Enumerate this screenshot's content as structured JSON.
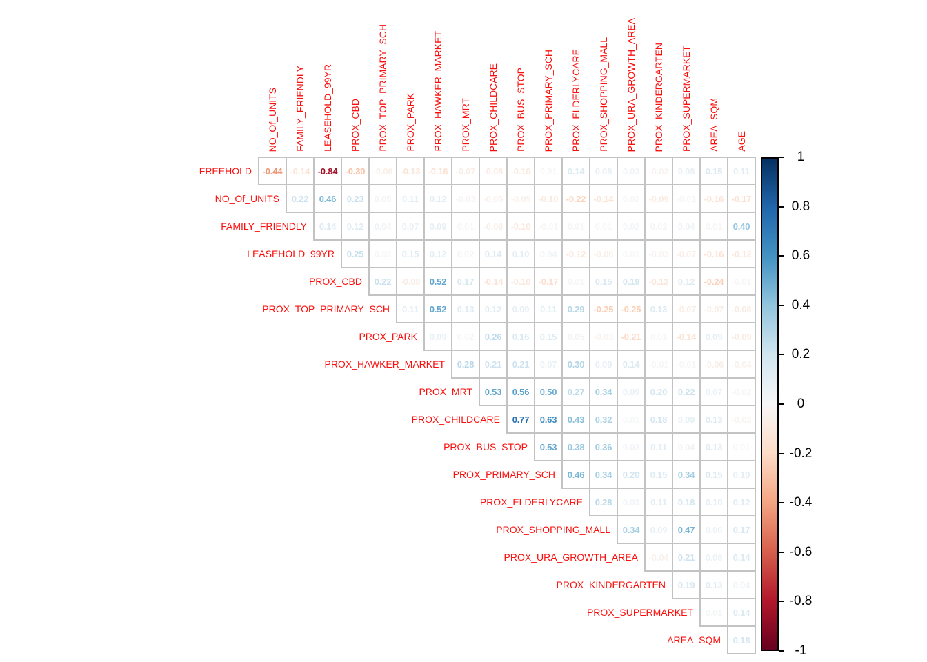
{
  "chart_data": {
    "type": "heatmap",
    "subtype": "correlation-matrix-upper-triangle",
    "value_format": "two-decimals",
    "value_range": [
      -1,
      1
    ],
    "grid": "on",
    "label_color": "#fb0f0c",
    "grid_color": "#c3c3c3",
    "tick_label_color": "#000000",
    "col_labels": [
      "NO_Of_UNITS",
      "FAMILY_FRIENDLY",
      "LEASEHOLD_99YR",
      "PROX_CBD",
      "PROX_TOP_PRIMARY_SCH",
      "PROX_PARK",
      "PROX_HAWKER_MARKET",
      "PROX_MRT",
      "PROX_CHILDCARE",
      "PROX_BUS_STOP",
      "PROX_PRIMARY_SCH",
      "PROX_ELDERLYCARE",
      "PROX_SHOPPING_MALL",
      "PROX_URA_GROWTH_AREA",
      "PROX_KINDERGARTEN",
      "PROX_SUPERMARKET",
      "AREA_SQM",
      "AGE"
    ],
    "rows": [
      {
        "label": "FREEHOLD",
        "values": [
          "-0.44",
          "-0.14",
          "-0.84",
          "-0.30",
          "-0.06",
          "-0.13",
          "-0.16",
          "-0.07",
          "-0.08",
          "-0.10",
          "0.01",
          "0.14",
          "0.08",
          "0.03",
          "-0.03",
          "0.08",
          "0.15",
          "0.11"
        ]
      },
      {
        "label": "NO_Of_UNITS",
        "values": [
          "0.22",
          "0.46",
          "0.23",
          "0.05",
          "0.11",
          "0.12",
          "-0.03",
          "-0.05",
          "-0.05",
          "-0.10",
          "-0.22",
          "-0.14",
          "0.02",
          "-0.09",
          "-0.01",
          "-0.16",
          "-0.17"
        ]
      },
      {
        "label": "FAMILY_FRIENDLY",
        "values": [
          "0.14",
          "0.12",
          "0.04",
          "0.07",
          "0.09",
          "0.01",
          "-0.06",
          "-0.10",
          "-0.01",
          "0.01",
          "0.01",
          "0.02",
          "0.02",
          "0.04",
          "0.01",
          "0.40"
        ]
      },
      {
        "label": "LEASEHOLD_99YR",
        "values": [
          "0.25",
          "0.02",
          "0.15",
          "0.12",
          "0.02",
          "0.14",
          "0.10",
          "0.04",
          "-0.12",
          "-0.06",
          "0.01",
          "-0.03",
          "-0.07",
          "-0.16",
          "-0.12"
        ]
      },
      {
        "label": "PROX_CBD",
        "values": [
          "0.22",
          "-0.08",
          "0.52",
          "0.17",
          "-0.14",
          "-0.10",
          "-0.17",
          "0.01",
          "0.15",
          "0.19",
          "-0.12",
          "0.12",
          "-0.24",
          "-0.01"
        ]
      },
      {
        "label": "PROX_TOP_PRIMARY_SCH",
        "values": [
          "0.11",
          "0.52",
          "0.13",
          "0.12",
          "0.09",
          "0.11",
          "0.29",
          "-0.25",
          "-0.25",
          "0.13",
          "-0.07",
          "-0.07",
          "-0.08"
        ]
      },
      {
        "label": "PROX_PARK",
        "values": [
          "0.09",
          "0.02",
          "0.26",
          "0.16",
          "0.15",
          "0.05",
          "-0.03",
          "-0.21",
          "0.01",
          "-0.14",
          "0.09",
          "-0.09"
        ]
      },
      {
        "label": "PROX_HAWKER_MARKET",
        "values": [
          "0.28",
          "0.21",
          "0.21",
          "0.07",
          "0.30",
          "0.09",
          "0.14",
          "-0.01",
          "-0.01",
          "-0.06",
          "-0.04"
        ]
      },
      {
        "label": "PROX_MRT",
        "values": [
          "0.53",
          "0.56",
          "0.50",
          "0.27",
          "0.34",
          "0.09",
          "0.20",
          "0.22",
          "0.07",
          "-0.02"
        ]
      },
      {
        "label": "PROX_CHILDCARE",
        "values": [
          "0.77",
          "0.63",
          "0.43",
          "0.32",
          "0.01",
          "0.18",
          "0.09",
          "0.13",
          "-0.02"
        ]
      },
      {
        "label": "PROX_BUS_STOP",
        "values": [
          "0.53",
          "0.38",
          "0.36",
          "0.03",
          "0.11",
          "0.04",
          "0.13",
          "0.01"
        ]
      },
      {
        "label": "PROX_PRIMARY_SCH",
        "values": [
          "0.46",
          "0.34",
          "0.20",
          "0.15",
          "0.34",
          "0.15",
          "0.10"
        ]
      },
      {
        "label": "PROX_ELDERLYCARE",
        "values": [
          "0.28",
          "0.03",
          "0.11",
          "0.18",
          "0.10",
          "0.12"
        ]
      },
      {
        "label": "PROX_SHOPPING_MALL",
        "values": [
          "0.34",
          "0.09",
          "0.47",
          "0.06",
          "0.17"
        ]
      },
      {
        "label": "PROX_URA_GROWTH_AREA",
        "values": [
          "-0.04",
          "0.21",
          "0.06",
          "0.14"
        ]
      },
      {
        "label": "PROX_KINDERGARTEN",
        "values": [
          "0.19",
          "0.13",
          "0.04"
        ]
      },
      {
        "label": "PROX_SUPERMARKET",
        "values": [
          "0.01",
          "0.14"
        ]
      },
      {
        "label": "AREA_SQM",
        "values": [
          "0.18"
        ]
      }
    ],
    "legend": {
      "position": "right",
      "min": -1,
      "max": 1,
      "ticks": [
        "1",
        "0.8",
        "0.6",
        "0.4",
        "0.2",
        "0",
        "-0.2",
        "-0.4",
        "-0.6",
        "-0.8",
        "-1"
      ]
    },
    "palette": {
      "name": "RdBu-reversed",
      "stops": [
        {
          "value": -1.0,
          "color": "#67001F"
        },
        {
          "value": -0.8,
          "color": "#B2182B"
        },
        {
          "value": -0.6,
          "color": "#D6604D"
        },
        {
          "value": -0.4,
          "color": "#F4A582"
        },
        {
          "value": -0.2,
          "color": "#FDDBC7"
        },
        {
          "value": 0.0,
          "color": "#F7F7F7"
        },
        {
          "value": 0.2,
          "color": "#D1E5F0"
        },
        {
          "value": 0.4,
          "color": "#92C5DE"
        },
        {
          "value": 0.6,
          "color": "#4393C3"
        },
        {
          "value": 0.8,
          "color": "#2166AC"
        },
        {
          "value": 1.0,
          "color": "#053061"
        }
      ]
    }
  }
}
